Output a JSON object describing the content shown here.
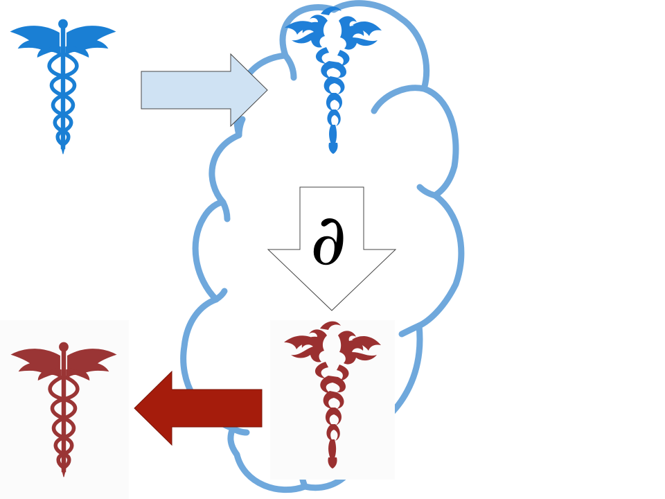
{
  "diagram": {
    "partial_symbol": "∂",
    "icons": [
      {
        "id": "caduceus-clean-blue",
        "icon": "caduceus-icon",
        "style": "clean",
        "color": "#1a7fd4"
      },
      {
        "id": "caduceus-distorted-blue",
        "icon": "caduceus-icon",
        "style": "distorted",
        "color": "#1f7fd8"
      },
      {
        "id": "caduceus-distorted-red",
        "icon": "caduceus-icon",
        "style": "distorted",
        "color": "#9a3030"
      },
      {
        "id": "caduceus-clean-red",
        "icon": "caduceus-icon",
        "style": "clean",
        "color": "#9a3535"
      }
    ],
    "arrows": [
      {
        "id": "arrow-into-cloud",
        "direction": "right",
        "fill": "#cfe2f3",
        "stroke": "#444444"
      },
      {
        "id": "arrow-derivative",
        "direction": "down",
        "fill": "#ffffff",
        "stroke": "#444444"
      },
      {
        "id": "arrow-out-of-cloud",
        "direction": "left",
        "fill": "#a51c0c",
        "stroke": "#7a1408"
      }
    ],
    "cloud": {
      "stroke": "#6fa8dc"
    }
  }
}
